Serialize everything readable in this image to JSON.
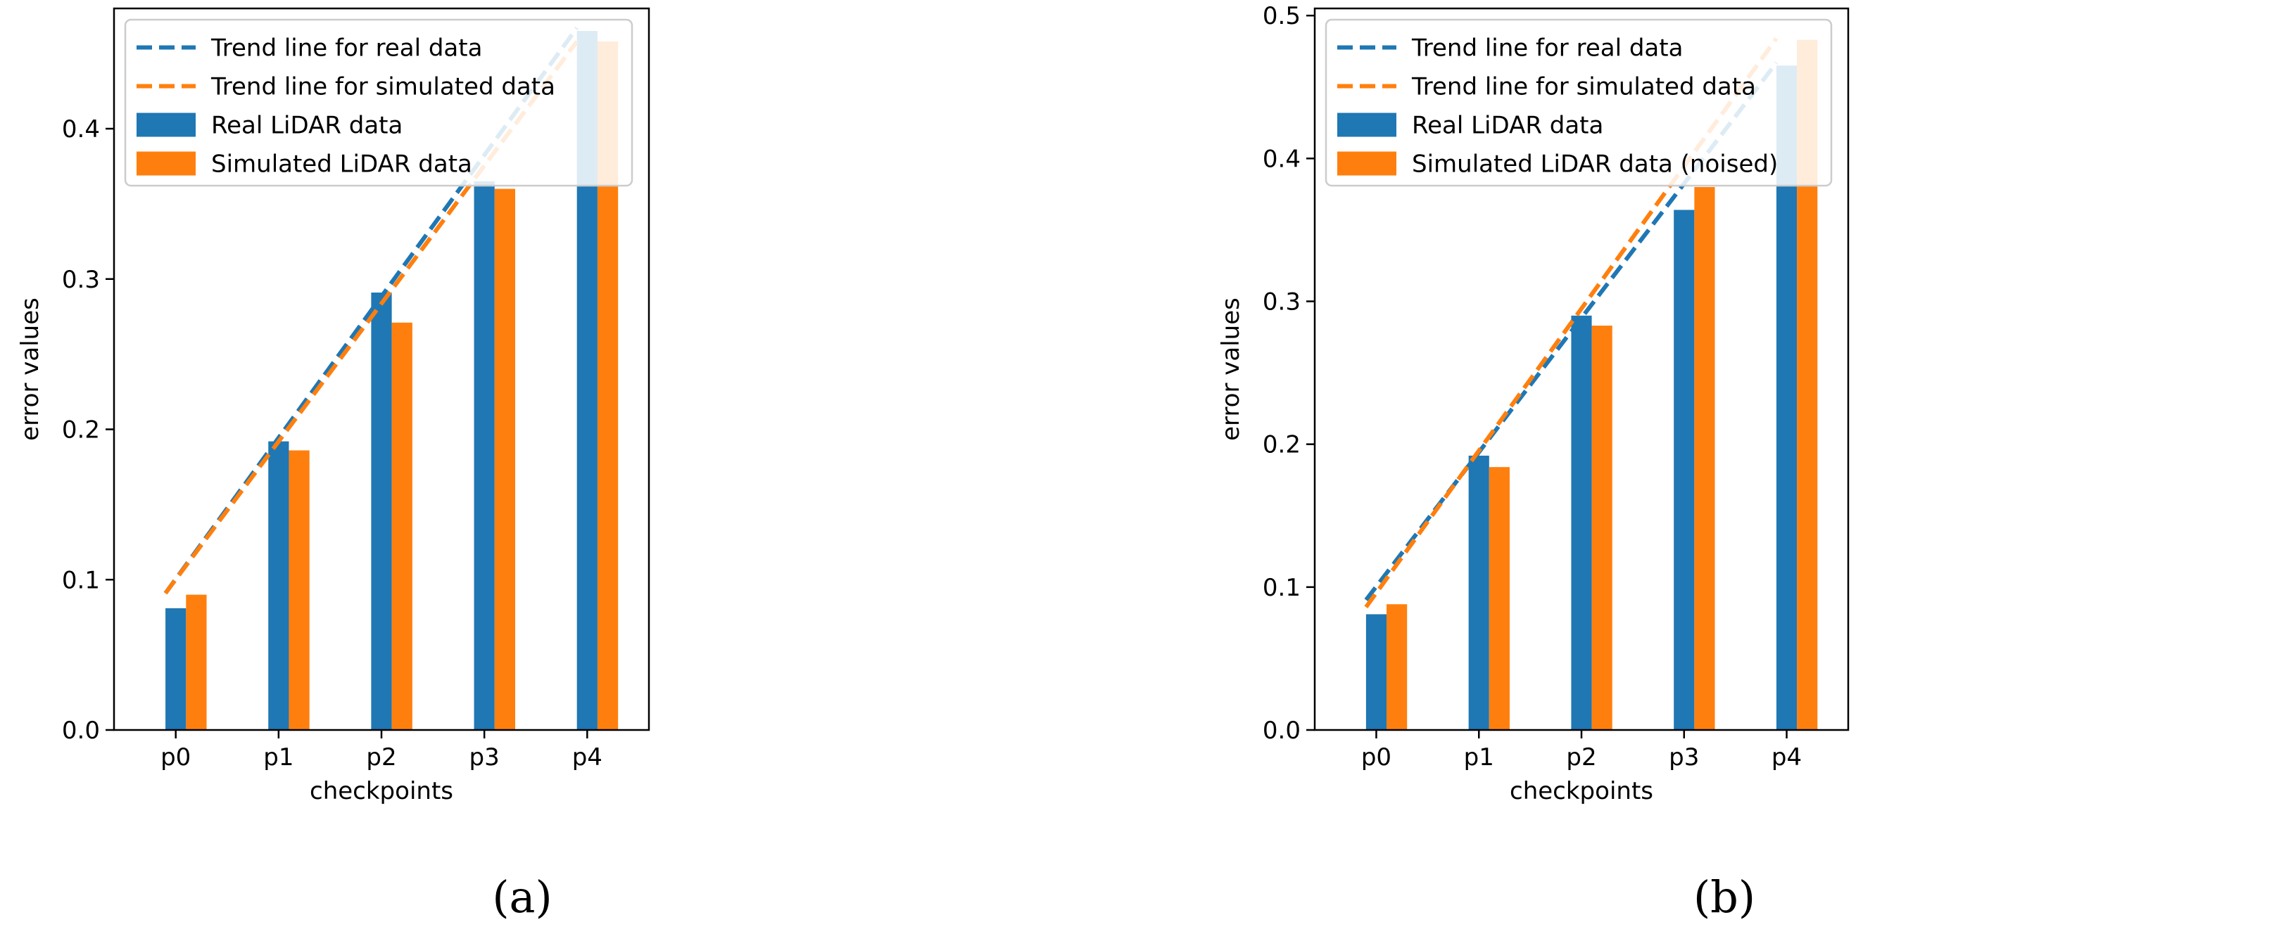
{
  "chart_data": [
    {
      "type": "bar",
      "caption": "(a)",
      "categories": [
        "p0",
        "p1",
        "p2",
        "p3",
        "p4"
      ],
      "series": [
        {
          "name": "Real LiDAR data",
          "color": "#1f77b4",
          "values": [
            0.081,
            0.192,
            0.291,
            0.365,
            0.465
          ]
        },
        {
          "name": "Simulated LiDAR data",
          "color": "#ff7f0e",
          "values": [
            0.09,
            0.186,
            0.271,
            0.36,
            0.458
          ]
        }
      ],
      "trend_lines": [
        {
          "name": "Trend line for real data",
          "color": "#1f77b4",
          "start": 0.091,
          "end": 0.467
        },
        {
          "name": "Trend line for simulated data",
          "color": "#ff7f0e",
          "start": 0.091,
          "end": 0.458
        }
      ],
      "xlabel": "checkpoints",
      "ylabel": "error values",
      "ylim": [
        0,
        0.48
      ],
      "yticks": [
        0.0,
        0.1,
        0.2,
        0.3,
        0.4
      ],
      "ytick_labels": [
        "0.0",
        "0.1",
        "0.2",
        "0.3",
        "0.4"
      ],
      "legend": "top-left",
      "grid": false
    },
    {
      "type": "bar",
      "caption": "(b)",
      "categories": [
        "p0",
        "p1",
        "p2",
        "p3",
        "p4"
      ],
      "series": [
        {
          "name": "Real LiDAR data",
          "color": "#1f77b4",
          "values": [
            0.081,
            0.192,
            0.29,
            0.364,
            0.465
          ]
        },
        {
          "name": "Simulated LiDAR data (noised)",
          "color": "#ff7f0e",
          "values": [
            0.088,
            0.184,
            0.283,
            0.38,
            0.483
          ]
        }
      ],
      "trend_lines": [
        {
          "name": "Trend line for real data",
          "color": "#1f77b4",
          "start": 0.091,
          "end": 0.467
        },
        {
          "name": "Trend line for simulated data",
          "color": "#ff7f0e",
          "start": 0.086,
          "end": 0.484
        }
      ],
      "xlabel": "checkpoints",
      "ylabel": "error values",
      "ylim": [
        0,
        0.505
      ],
      "yticks": [
        0.0,
        0.1,
        0.2,
        0.3,
        0.4,
        0.5
      ],
      "ytick_labels": [
        "0.0",
        "0.1",
        "0.2",
        "0.3",
        "0.4",
        "0.5"
      ],
      "legend": "top-left",
      "grid": false
    }
  ]
}
